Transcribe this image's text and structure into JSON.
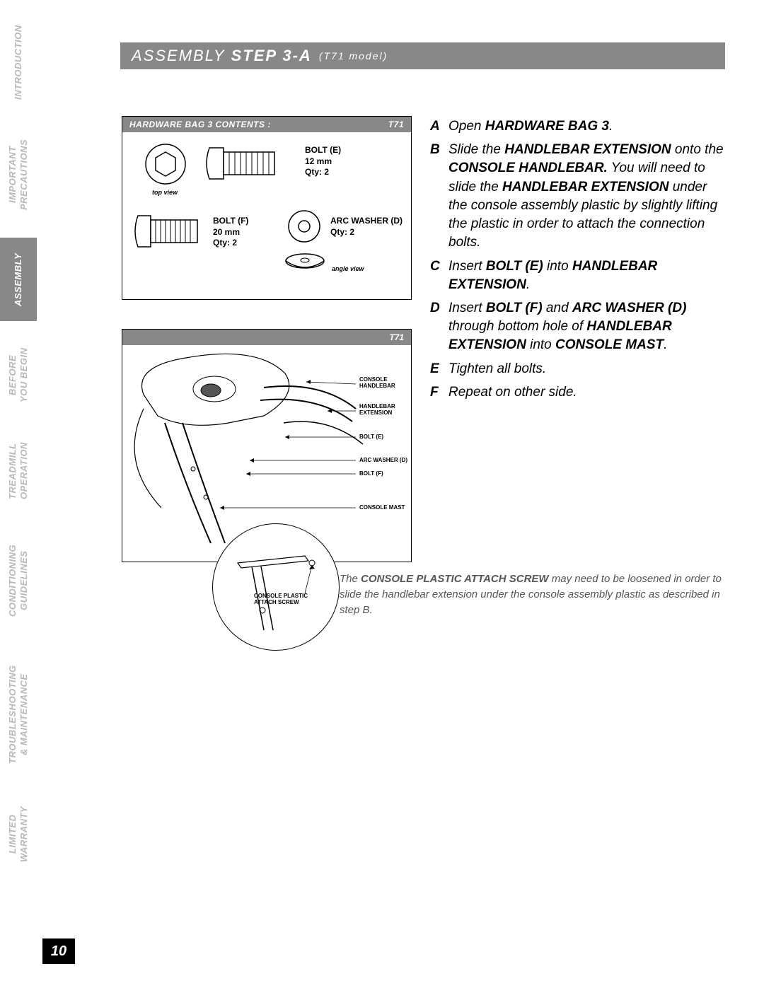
{
  "sidebar": {
    "items": [
      {
        "label": "INTRODUCTION"
      },
      {
        "label": "IMPORTANT\nPRECAUTIONS"
      },
      {
        "label": "ASSEMBLY"
      },
      {
        "label": "BEFORE\nYOU BEGIN"
      },
      {
        "label": "TREADMILL\nOPERATION"
      },
      {
        "label": "CONDITIONING\nGUIDELINES"
      },
      {
        "label": "TROUBLESHOOTING\n& MAINTENANCE"
      },
      {
        "label": "LIMITED\nWARRANTY"
      }
    ]
  },
  "header": {
    "prefix": "ASSEMBLY",
    "step": "STEP 3-A",
    "model": "(T71 model)"
  },
  "hardware_box": {
    "title": "HARDWARE BAG 3 CONTENTS :",
    "tag": "T71",
    "bolt_e": {
      "line1": "BOLT (E)",
      "line2": "12 mm",
      "line3": "Qty: 2"
    },
    "bolt_f": {
      "line1": "BOLT (F)",
      "line2": "20 mm",
      "line3": "Qty: 2"
    },
    "washer": {
      "line1": "ARC WASHER (D)",
      "line2": "Qty: 2"
    },
    "top_view": "top view",
    "angle_view": "angle view"
  },
  "diagram_box": {
    "tag": "T71",
    "labels": {
      "console_handlebar": "CONSOLE\nHANDLEBAR",
      "handlebar_ext": "HANDLEBAR\nEXTENSION",
      "bolt_e": "BOLT (E)",
      "arc_washer": "ARC WASHER (D)",
      "bolt_f": "BOLT (F)",
      "console_mast": "CONSOLE MAST"
    }
  },
  "detail": {
    "label": "CONSOLE PLASTIC\nATTACH SCREW"
  },
  "instructions": {
    "A": {
      "text": "Open <b>HARDWARE BAG 3</b>."
    },
    "B": {
      "text": "Slide the <b>HANDLEBAR EXTENSION</b> onto the <b>CONSOLE HANDLEBAR.</b> You will need to slide the <b>HANDLEBAR EXTENSION</b> under the console assembly plastic by slightly lifting the plastic in order to attach the connection bolts."
    },
    "C": {
      "text": "Insert <b>BOLT (E)</b> into <b>HANDLEBAR EXTENSION</b>."
    },
    "D": {
      "text": "Insert <b>BOLT (F)</b> and <b>ARC WASHER (D)</b> through bottom hole of <b>HANDLEBAR EXTENSION</b> into <b>CONSOLE MAST</b>."
    },
    "E": {
      "text": "Tighten all bolts."
    },
    "F": {
      "text": "Repeat on other side."
    }
  },
  "note": "The <b>CONSOLE PLASTIC ATTACH SCREW</b> may need to be loosened in order to slide the handlebar extension under the console assembly plastic as described in step B.",
  "page_number": "10"
}
